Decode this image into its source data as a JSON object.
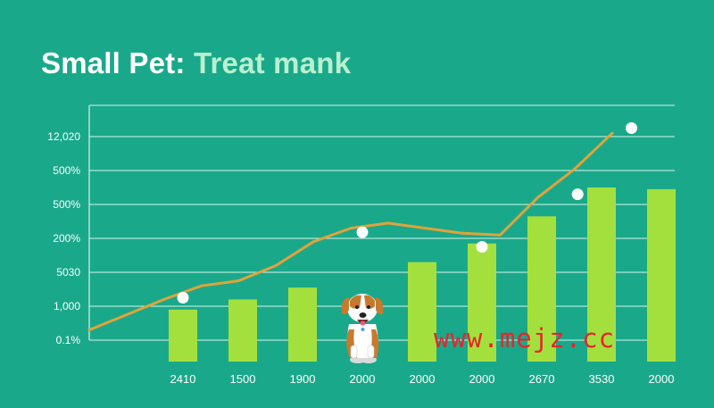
{
  "title": {
    "part1": "Small Pet: ",
    "part2": "Treat mank"
  },
  "watermark": "www.mejz.cc",
  "colors": {
    "background": "#1aa88a",
    "bar": "#a3e03d",
    "line": "#e0a33b",
    "marker": "#ffffff",
    "grid": "#d6f3ea",
    "title_accent": "#b9f0cf",
    "watermark": "#e8242c"
  },
  "chart_data": {
    "type": "bar",
    "title": "Small Pet: Treat mank",
    "xlabel": "",
    "ylabel": "",
    "grid": true,
    "y_tick_labels": [
      "0.1%",
      "1,000",
      "5030",
      "200%",
      "500%",
      "500%",
      "12,020"
    ],
    "categories": [
      "2410",
      "1500",
      "1900",
      "2000",
      "2000",
      "2000",
      "2670",
      "3530",
      "2000"
    ],
    "bar_levels": [
      0.9,
      1.2,
      1.55,
      0,
      2.3,
      2.85,
      3.65,
      4.5,
      4.45
    ],
    "line_levels": [
      0.3,
      0.75,
      1.2,
      1.6,
      1.75,
      2.2,
      2.9,
      3.3,
      3.45,
      3.3,
      3.15,
      3.1,
      4.2,
      5.05,
      6.1
    ],
    "marker_levels": [
      {
        "category_index": 0,
        "level": 1.25
      },
      {
        "category_index": 3,
        "level": 3.18
      },
      {
        "category_index": 5,
        "level": 2.75
      },
      {
        "category_index": 6.6,
        "level": 4.3
      },
      {
        "category_index": 7.5,
        "level": 6.25
      }
    ],
    "illustration": "dog-icon"
  }
}
